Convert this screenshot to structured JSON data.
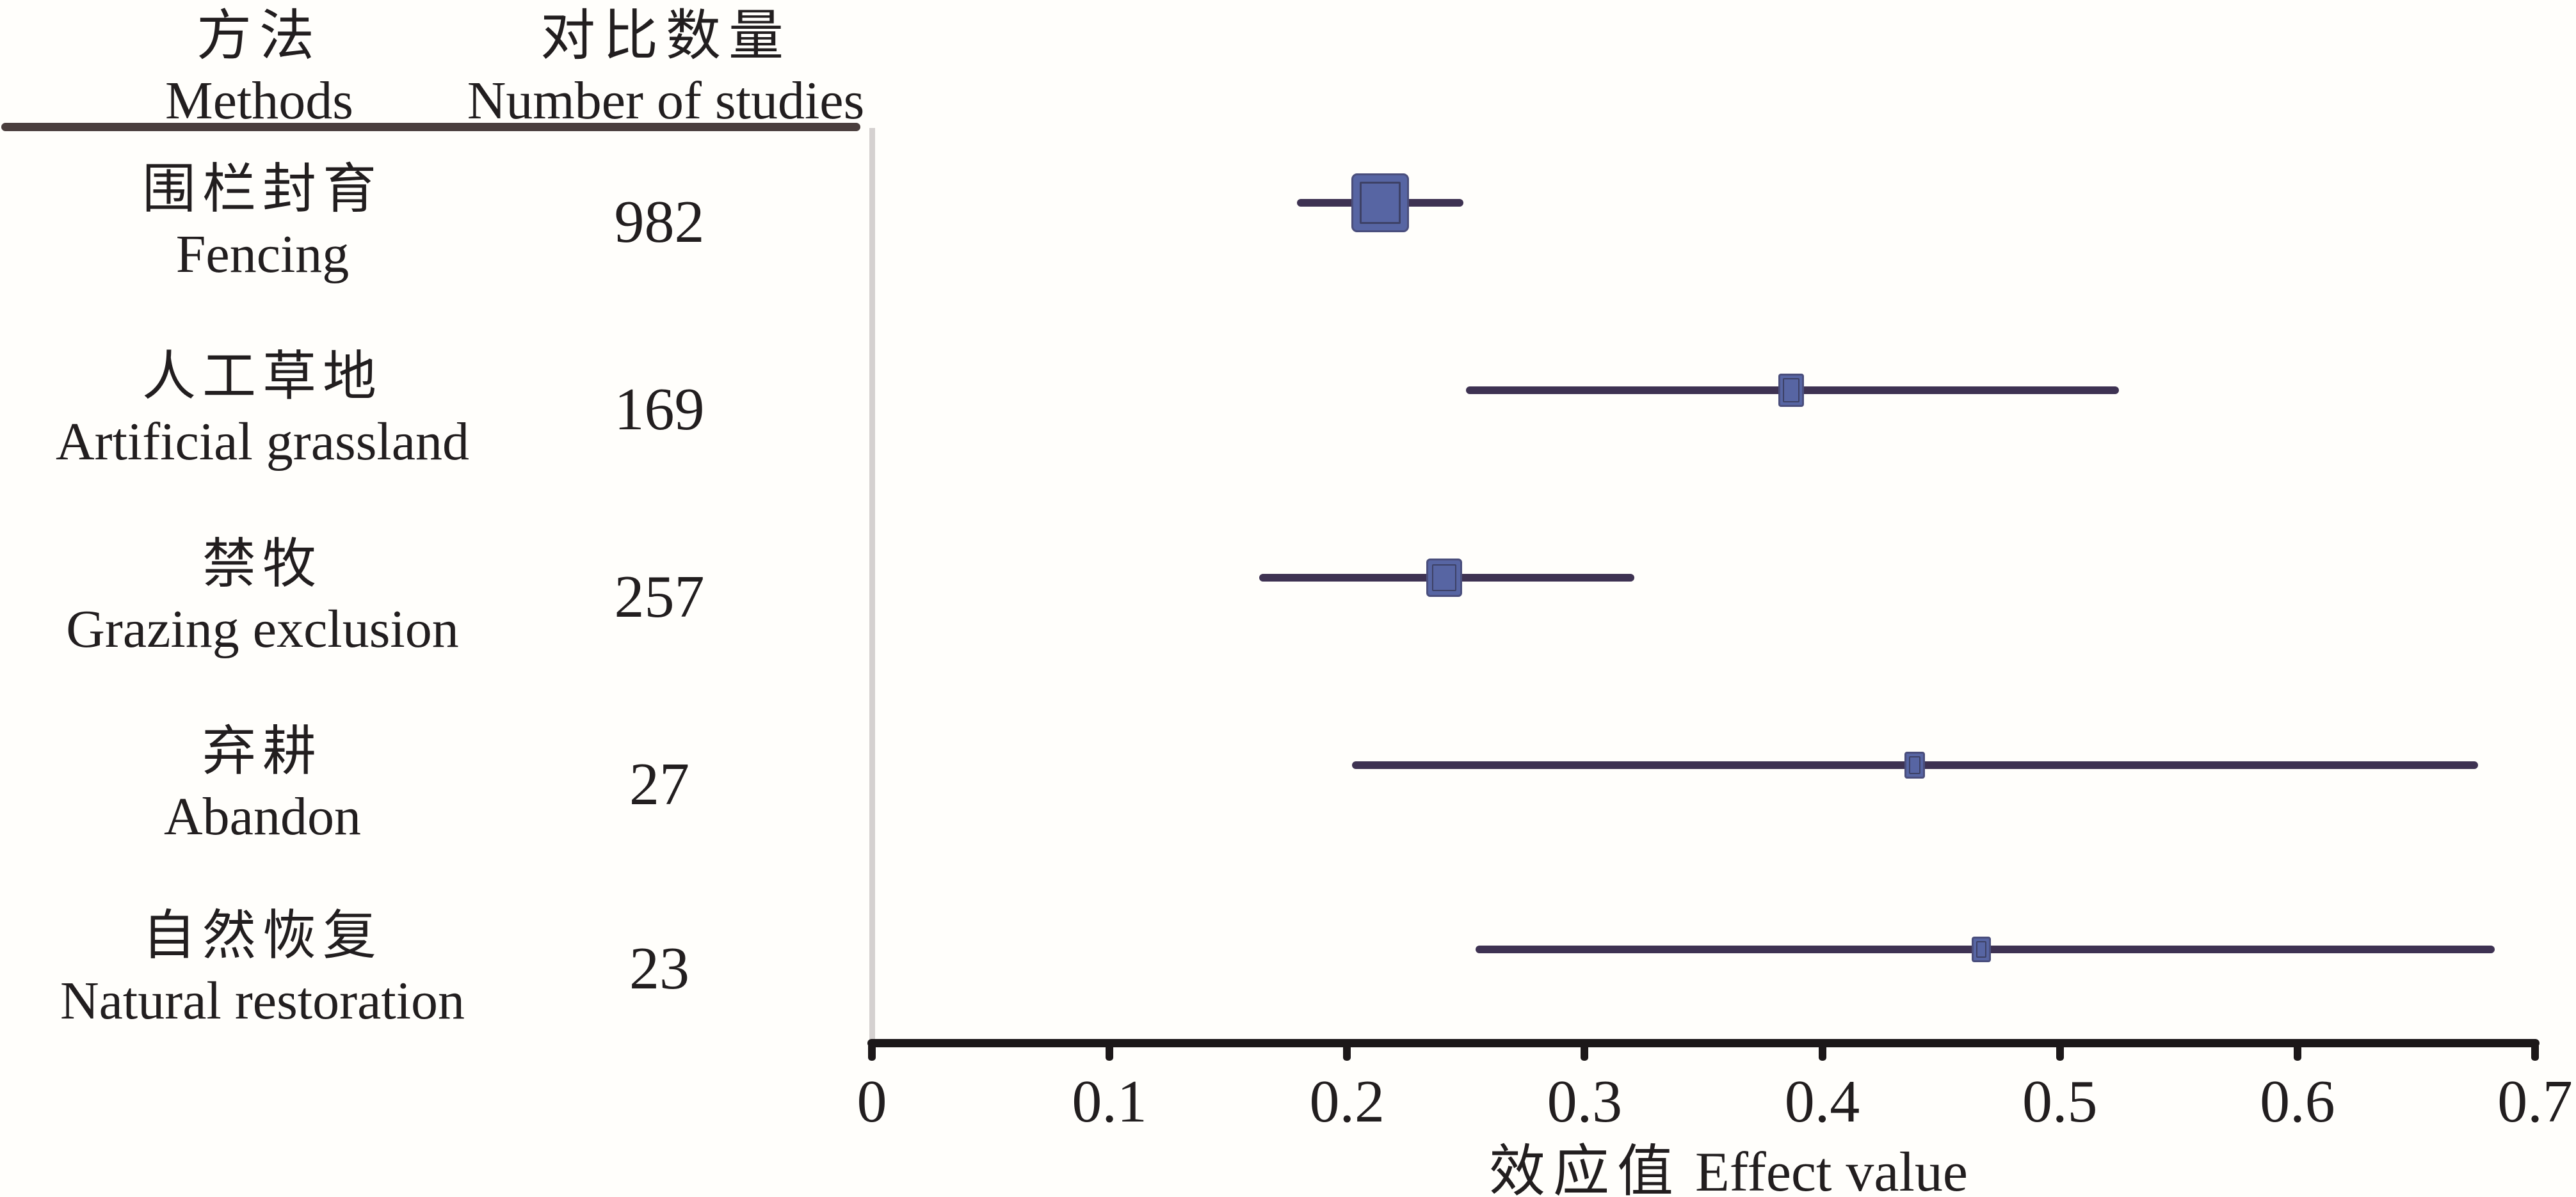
{
  "table": {
    "method_header_zh": "方法",
    "method_header_en": "Methods",
    "n_header_zh": "对比数量",
    "n_header_en": "Number of studies"
  },
  "chart_data": {
    "type": "forest",
    "xlabel_zh": "效应值",
    "xlabel_en": "Effect value",
    "xlim": [
      0,
      0.7
    ],
    "xticks": [
      "0",
      "0.1",
      "0.2",
      "0.3",
      "0.4",
      "0.5",
      "0.6",
      "0.7"
    ],
    "legend": "none",
    "grid": false,
    "series": [
      {
        "label_zh": "围栏封育",
        "label_en": "Fencing",
        "n_studies": "982",
        "effect": 0.214,
        "ci_low": 0.179,
        "ci_high": 0.249,
        "marker_w": 90,
        "marker_h": 92
      },
      {
        "label_zh": "人工草地",
        "label_en": "Artificial grassland",
        "n_studies": "169",
        "effect": 0.387,
        "ci_low": 0.25,
        "ci_high": 0.525,
        "marker_w": 40,
        "marker_h": 52
      },
      {
        "label_zh": "禁牧",
        "label_en": "Grazing exclusion",
        "n_studies": "257",
        "effect": 0.241,
        "ci_low": 0.163,
        "ci_high": 0.321,
        "marker_w": 56,
        "marker_h": 60
      },
      {
        "label_zh": "弃耕",
        "label_en": "Abandon",
        "n_studies": "27",
        "effect": 0.439,
        "ci_low": 0.202,
        "ci_high": 0.676,
        "marker_w": 32,
        "marker_h": 42
      },
      {
        "label_zh": "自然恢复",
        "label_en": "Natural restoration",
        "n_studies": "23",
        "effect": 0.467,
        "ci_low": 0.254,
        "ci_high": 0.683,
        "marker_w": 30,
        "marker_h": 40
      }
    ],
    "colors": {
      "marker_fill": "#5765a3",
      "marker_border": "#4a4e7c",
      "marker_inner_outline": "#3d4166",
      "ci_line": "#3e3252",
      "axis": "#1c1819",
      "header_rule": "#4a3e3d",
      "zero_line": "#d5d1d0",
      "text": "#221e1f",
      "background": "#fffefb"
    }
  }
}
